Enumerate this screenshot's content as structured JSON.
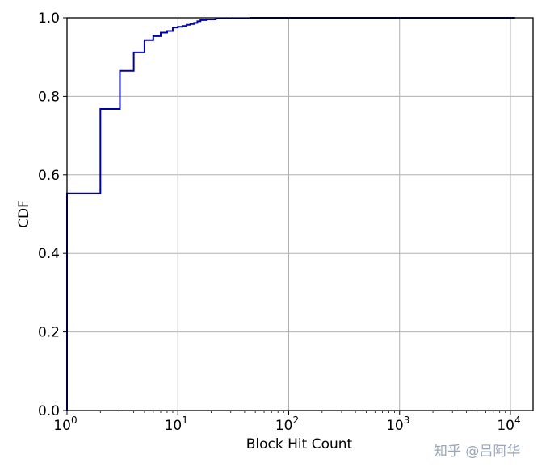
{
  "chart_data": {
    "type": "line",
    "step": true,
    "title": "",
    "xlabel": "Block Hit Count",
    "ylabel": "CDF",
    "xscale": "log",
    "xlim": [
      1,
      16000
    ],
    "ylim": [
      0,
      1.0
    ],
    "grid": true,
    "x_ticks": [
      {
        "value": 1,
        "base": "10",
        "exp": "0"
      },
      {
        "value": 10,
        "base": "10",
        "exp": "1"
      },
      {
        "value": 100,
        "base": "10",
        "exp": "2"
      },
      {
        "value": 1000,
        "base": "10",
        "exp": "3"
      },
      {
        "value": 10000,
        "base": "10",
        "exp": "4"
      }
    ],
    "y_ticks": [
      {
        "value": 0.0,
        "label": "0.0"
      },
      {
        "value": 0.2,
        "label": "0.2"
      },
      {
        "value": 0.4,
        "label": "0.4"
      },
      {
        "value": 0.6,
        "label": "0.6"
      },
      {
        "value": 0.8,
        "label": "0.8"
      },
      {
        "value": 1.0,
        "label": "1.0"
      }
    ],
    "series": [
      {
        "color": "#0000aa",
        "points": [
          [
            1,
            0.0
          ],
          [
            1,
            0.553
          ],
          [
            2,
            0.553
          ],
          [
            2,
            0.768
          ],
          [
            3,
            0.768
          ],
          [
            3,
            0.865
          ],
          [
            4,
            0.865
          ],
          [
            4,
            0.912
          ],
          [
            5,
            0.912
          ],
          [
            5,
            0.943
          ],
          [
            6,
            0.943
          ],
          [
            6,
            0.953
          ],
          [
            7,
            0.953
          ],
          [
            7,
            0.962
          ],
          [
            8,
            0.962
          ],
          [
            8,
            0.966
          ],
          [
            9,
            0.966
          ],
          [
            9,
            0.975
          ],
          [
            10,
            0.975
          ],
          [
            10,
            0.977
          ],
          [
            11,
            0.977
          ],
          [
            11,
            0.979
          ],
          [
            12,
            0.979
          ],
          [
            12,
            0.982
          ],
          [
            13,
            0.982
          ],
          [
            13,
            0.984
          ],
          [
            14,
            0.984
          ],
          [
            14,
            0.987
          ],
          [
            15,
            0.987
          ],
          [
            15,
            0.991
          ],
          [
            16,
            0.991
          ],
          [
            16,
            0.994
          ],
          [
            18,
            0.994
          ],
          [
            18,
            0.996
          ],
          [
            22,
            0.996
          ],
          [
            22,
            0.998
          ],
          [
            30,
            0.998
          ],
          [
            30,
            0.999
          ],
          [
            45,
            0.999
          ],
          [
            45,
            1.0
          ],
          [
            11000,
            1.0
          ]
        ]
      }
    ]
  },
  "watermark": "知乎 @吕阿华"
}
